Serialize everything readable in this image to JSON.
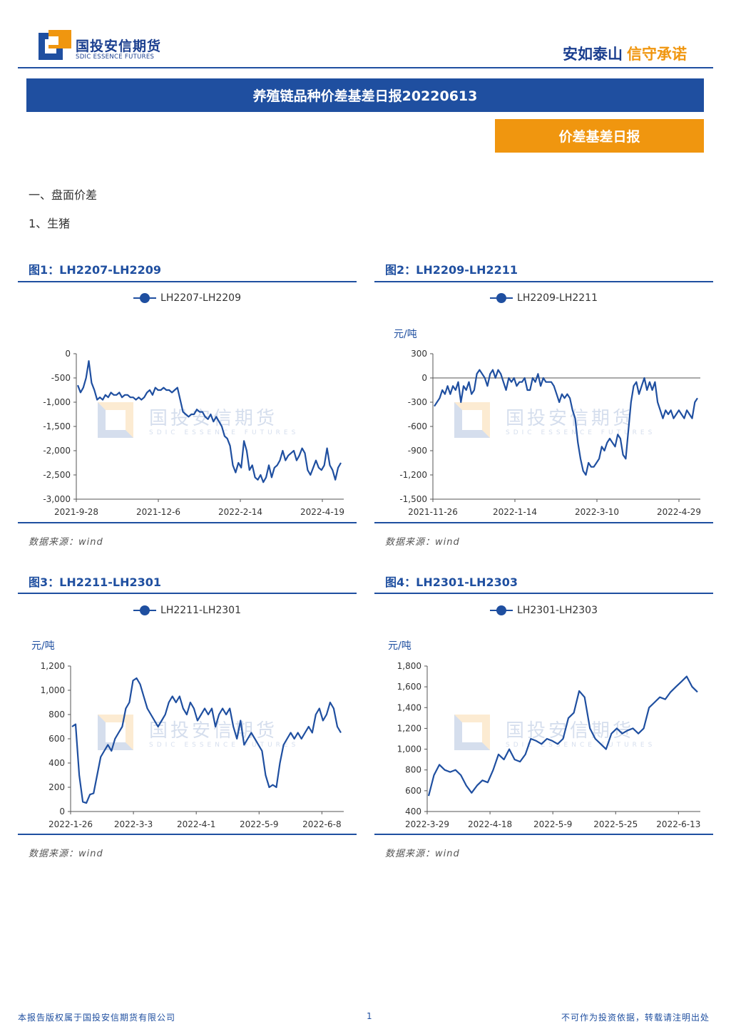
{
  "header": {
    "brand_cn": "国投安信期货",
    "brand_en": "SDIC ESSENCE FUTURES",
    "slogan_blue": "安如泰山",
    "slogan_orange": "信守承诺"
  },
  "title": "养殖链品种价差基差日报20220613",
  "tag": "价差基差日报",
  "sections": {
    "s1": "一、盘面价差",
    "s2": "1、生猪"
  },
  "watermark": {
    "cn": "国投安信期货",
    "en": "SDIC ESSENCE FUTURES"
  },
  "figures": [
    {
      "title": "图1：LH2207-LH2209",
      "source": "数据来源：wind",
      "unit": ""
    },
    {
      "title": "图2：LH2209-LH2211",
      "source": "数据来源：wind",
      "unit": "元/吨"
    },
    {
      "title": "图3：LH2211-LH2301",
      "source": "数据来源：wind",
      "unit": "元/吨"
    },
    {
      "title": "图4：LH2301-LH2303",
      "source": "数据来源：wind",
      "unit": "元/吨"
    }
  ],
  "footer": {
    "left": "本报告版权属于国投安信期货有限公司",
    "page": "1",
    "right": "不可作为投资依据，转载请注明出处"
  },
  "colors": {
    "brand_blue": "#1f4fa0",
    "brand_orange": "#f0960f"
  },
  "chart_data": [
    {
      "type": "line",
      "series": [
        {
          "name": "LH2207-LH2209",
          "color": "#1f4fa0"
        }
      ],
      "ylim": [
        -3000,
        0
      ],
      "yticks": [
        0,
        -500,
        -1000,
        -1500,
        -2000,
        -2500,
        -3000
      ],
      "ytick_labels": [
        "0",
        "-500",
        "-1,000",
        "-1,500",
        "-2,000",
        "-2,500",
        "-3,000"
      ],
      "xtick_labels": [
        "2021-9-28",
        "2021-12-6",
        "2022-2-14",
        "2022-4-19"
      ],
      "values": [
        -650,
        -800,
        -700,
        -500,
        -150,
        -600,
        -750,
        -950,
        -900,
        -950,
        -850,
        -900,
        -800,
        -850,
        -850,
        -800,
        -900,
        -850,
        -850,
        -900,
        -900,
        -950,
        -900,
        -950,
        -900,
        -800,
        -750,
        -850,
        -700,
        -750,
        -750,
        -700,
        -750,
        -750,
        -800,
        -750,
        -700,
        -950,
        -1200,
        -1250,
        -1300,
        -1250,
        -1250,
        -1150,
        -1200,
        -1200,
        -1300,
        -1350,
        -1250,
        -1400,
        -1300,
        -1400,
        -1500,
        -1700,
        -1750,
        -1900,
        -2300,
        -2450,
        -2250,
        -2350,
        -1800,
        -2000,
        -2400,
        -2300,
        -2550,
        -2600,
        -2500,
        -2650,
        -2550,
        -2300,
        -2550,
        -2350,
        -2300,
        -2200,
        -2000,
        -2200,
        -2100,
        -2050,
        -2000,
        -2200,
        -2100,
        -1950,
        -2050,
        -2400,
        -2500,
        -2350,
        -2200,
        -2350,
        -2400,
        -2300,
        -1950,
        -2300,
        -2400,
        -2600,
        -2350,
        -2250
      ]
    },
    {
      "type": "line",
      "series": [
        {
          "name": "LH2209-LH2211",
          "color": "#1f4fa0"
        }
      ],
      "ylabel": "元/吨",
      "ylim": [
        -1500,
        300
      ],
      "yticks": [
        300,
        0,
        -300,
        -600,
        -900,
        -1200,
        -1500
      ],
      "ytick_labels": [
        "300",
        "0",
        "-300",
        "-600",
        "-900",
        "-1,200",
        "-1,500"
      ],
      "xtick_labels": [
        "2021-11-26",
        "2022-1-14",
        "2022-3-10",
        "2022-4-29"
      ],
      "values": [
        -350,
        -300,
        -250,
        -150,
        -200,
        -100,
        -200,
        -100,
        -150,
        -50,
        -300,
        -100,
        -150,
        -50,
        -200,
        -150,
        50,
        100,
        50,
        0,
        -100,
        50,
        100,
        0,
        100,
        50,
        -50,
        -150,
        0,
        -50,
        0,
        -100,
        -50,
        -50,
        0,
        -150,
        -150,
        0,
        -50,
        50,
        -100,
        0,
        -50,
        -50,
        -50,
        -100,
        -200,
        -300,
        -200,
        -250,
        -200,
        -250,
        -400,
        -500,
        -800,
        -1000,
        -1150,
        -1200,
        -1050,
        -1100,
        -1100,
        -1050,
        -1000,
        -850,
        -900,
        -800,
        -750,
        -800,
        -850,
        -700,
        -750,
        -950,
        -1000,
        -650,
        -300,
        -100,
        -50,
        -200,
        -100,
        0,
        -150,
        -50,
        -150,
        -50,
        -300,
        -400,
        -500,
        -400,
        -450,
        -400,
        -500,
        -450,
        -400,
        -450,
        -500,
        -400,
        -450,
        -500,
        -300,
        -250
      ]
    },
    {
      "type": "line",
      "series": [
        {
          "name": "LH2211-LH2301",
          "color": "#1f4fa0"
        }
      ],
      "ylabel": "元/吨",
      "ylim": [
        0,
        1200
      ],
      "yticks": [
        0,
        200,
        400,
        600,
        800,
        1000,
        1200
      ],
      "ytick_labels": [
        "0",
        "200",
        "400",
        "600",
        "800",
        "1,000",
        "1,200"
      ],
      "xtick_labels": [
        "2022-1-26",
        "2022-3-3",
        "2022-4-1",
        "2022-5-9",
        "2022-6-8"
      ],
      "values": [
        700,
        720,
        300,
        80,
        70,
        140,
        150,
        300,
        450,
        500,
        550,
        500,
        600,
        650,
        700,
        850,
        900,
        1080,
        1100,
        1050,
        950,
        850,
        800,
        750,
        700,
        750,
        800,
        900,
        950,
        900,
        950,
        850,
        800,
        900,
        850,
        750,
        800,
        850,
        800,
        850,
        700,
        800,
        850,
        800,
        850,
        700,
        600,
        750,
        550,
        600,
        650,
        600,
        550,
        500,
        300,
        200,
        220,
        200,
        400,
        550,
        600,
        650,
        600,
        650,
        600,
        650,
        700,
        650,
        800,
        850,
        750,
        800,
        900,
        850,
        700,
        650
      ]
    },
    {
      "type": "line",
      "series": [
        {
          "name": "LH2301-LH2303",
          "color": "#1f4fa0"
        }
      ],
      "ylabel": "元/吨",
      "ylim": [
        400,
        1800
      ],
      "yticks": [
        400,
        600,
        800,
        1000,
        1200,
        1400,
        1600,
        1800
      ],
      "ytick_labels": [
        "400",
        "600",
        "800",
        "1,000",
        "1,200",
        "1,400",
        "1,600",
        "1,800"
      ],
      "xtick_labels": [
        "2022-3-29",
        "2022-4-18",
        "2022-5-9",
        "2022-5-25",
        "2022-6-13"
      ],
      "values": [
        550,
        750,
        850,
        800,
        780,
        800,
        750,
        650,
        580,
        650,
        700,
        680,
        800,
        950,
        900,
        1000,
        900,
        880,
        950,
        1100,
        1080,
        1050,
        1100,
        1080,
        1050,
        1100,
        1300,
        1350,
        1560,
        1500,
        1200,
        1100,
        1050,
        1000,
        1150,
        1200,
        1150,
        1180,
        1200,
        1150,
        1200,
        1400,
        1450,
        1500,
        1480,
        1550,
        1600,
        1650,
        1700,
        1600,
        1550
      ]
    }
  ]
}
